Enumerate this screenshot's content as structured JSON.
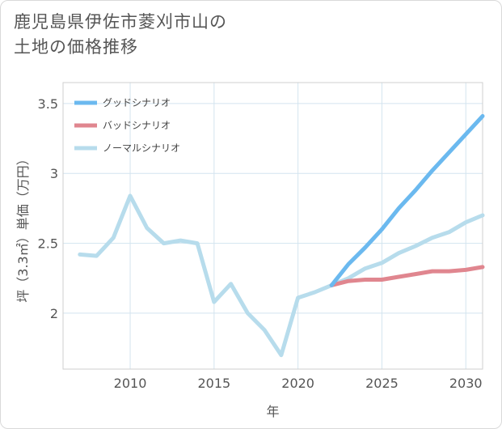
{
  "chart_data": {
    "type": "line",
    "title": "鹿児島県伊佐市菱刈市山の\n土地の価格推移",
    "xlabel": "年",
    "ylabel": "坪（3.3㎡）単価（万円）",
    "xlim": [
      2006,
      2031
    ],
    "ylim": [
      1.6,
      3.65
    ],
    "x_ticks": [
      2010,
      2015,
      2020,
      2025,
      2030
    ],
    "y_ticks": [
      2,
      2.5,
      3,
      3.5
    ],
    "grid": true,
    "legend_position": "top-left",
    "series": [
      {
        "name": "グッドシナリオ",
        "color": "#6bb9ef",
        "x": [
          2022,
          2023,
          2024,
          2025,
          2026,
          2027,
          2028,
          2029,
          2030,
          2031
        ],
        "y": [
          2.2,
          2.35,
          2.47,
          2.6,
          2.75,
          2.88,
          3.02,
          3.15,
          3.28,
          3.41
        ]
      },
      {
        "name": "バッドシナリオ",
        "color": "#e0868f",
        "x": [
          2022,
          2023,
          2024,
          2025,
          2026,
          2027,
          2028,
          2029,
          2030,
          2031
        ],
        "y": [
          2.2,
          2.23,
          2.24,
          2.24,
          2.26,
          2.28,
          2.3,
          2.3,
          2.31,
          2.33
        ]
      },
      {
        "name": "ノーマルシナリオ",
        "color": "#b7dcec",
        "x": [
          2007,
          2008,
          2009,
          2010,
          2011,
          2012,
          2013,
          2014,
          2015,
          2016,
          2017,
          2018,
          2019,
          2020,
          2021,
          2022,
          2023,
          2024,
          2025,
          2026,
          2027,
          2028,
          2029,
          2030,
          2031
        ],
        "y": [
          2.42,
          2.41,
          2.54,
          2.84,
          2.61,
          2.5,
          2.52,
          2.5,
          2.08,
          2.21,
          2.0,
          1.88,
          1.7,
          2.11,
          2.15,
          2.2,
          2.25,
          2.32,
          2.36,
          2.43,
          2.48,
          2.54,
          2.58,
          2.65,
          2.7
        ]
      }
    ]
  }
}
